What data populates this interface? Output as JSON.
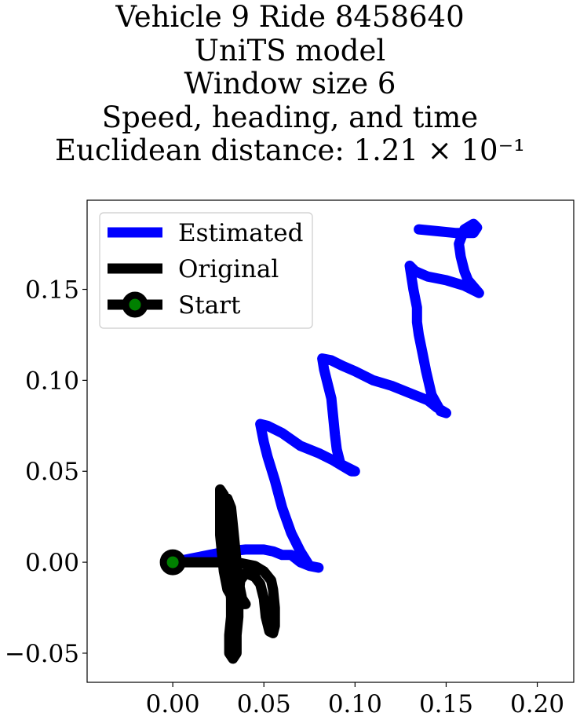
{
  "chart_data": {
    "type": "line",
    "title_lines": [
      "Vehicle 9 Ride 8458640",
      "UniTS model",
      "Window size 6",
      "Speed, heading, and time",
      "Euclidean distance: 1.21 × 10⁻¹"
    ],
    "xlabel": "",
    "ylabel": "",
    "xlim": [
      -0.047,
      0.22
    ],
    "ylim": [
      -0.066,
      0.199
    ],
    "x_ticks": [
      {
        "value": 0.0,
        "label": "0.00"
      },
      {
        "value": 0.05,
        "label": "0.05"
      },
      {
        "value": 0.1,
        "label": "0.10"
      },
      {
        "value": 0.15,
        "label": "0.15"
      },
      {
        "value": 0.2,
        "label": "0.20"
      }
    ],
    "y_ticks": [
      {
        "value": -0.05,
        "label": "−0.05"
      },
      {
        "value": 0.0,
        "label": "0.00"
      },
      {
        "value": 0.05,
        "label": "0.05"
      },
      {
        "value": 0.1,
        "label": "0.10"
      },
      {
        "value": 0.15,
        "label": "0.15"
      }
    ],
    "grid": false,
    "legend_position": "top-left",
    "legend": [
      "Estimated",
      "Original",
      "Start"
    ],
    "series": [
      {
        "name": "Estimated",
        "color": "#0000ff",
        "points": [
          [
            0.0,
            0.0
          ],
          [
            0.01,
            0.002
          ],
          [
            0.02,
            0.004
          ],
          [
            0.03,
            0.006
          ],
          [
            0.04,
            0.007
          ],
          [
            0.05,
            0.007
          ],
          [
            0.055,
            0.006
          ],
          [
            0.06,
            0.004
          ],
          [
            0.065,
            0.004
          ],
          [
            0.07,
            0.0
          ],
          [
            0.075,
            -0.002
          ],
          [
            0.08,
            -0.003
          ],
          [
            0.075,
            -0.002
          ],
          [
            0.07,
            0.006
          ],
          [
            0.065,
            0.016
          ],
          [
            0.06,
            0.03
          ],
          [
            0.056,
            0.045
          ],
          [
            0.052,
            0.058
          ],
          [
            0.05,
            0.066
          ],
          [
            0.048,
            0.076
          ],
          [
            0.052,
            0.075
          ],
          [
            0.06,
            0.071
          ],
          [
            0.07,
            0.064
          ],
          [
            0.08,
            0.06
          ],
          [
            0.088,
            0.056
          ],
          [
            0.093,
            0.053
          ],
          [
            0.098,
            0.05
          ],
          [
            0.1,
            0.05
          ],
          [
            0.092,
            0.054
          ],
          [
            0.09,
            0.062
          ],
          [
            0.089,
            0.07
          ],
          [
            0.088,
            0.08
          ],
          [
            0.087,
            0.09
          ],
          [
            0.085,
            0.098
          ],
          [
            0.083,
            0.106
          ],
          [
            0.082,
            0.112
          ],
          [
            0.087,
            0.111
          ],
          [
            0.093,
            0.108
          ],
          [
            0.1,
            0.105
          ],
          [
            0.11,
            0.1
          ],
          [
            0.12,
            0.097
          ],
          [
            0.13,
            0.093
          ],
          [
            0.14,
            0.089
          ],
          [
            0.145,
            0.085
          ],
          [
            0.15,
            0.082
          ],
          [
            0.147,
            0.083
          ],
          [
            0.142,
            0.092
          ],
          [
            0.139,
            0.105
          ],
          [
            0.137,
            0.115
          ],
          [
            0.135,
            0.125
          ],
          [
            0.134,
            0.132
          ],
          [
            0.134,
            0.14
          ],
          [
            0.132,
            0.15
          ],
          [
            0.13,
            0.163
          ],
          [
            0.133,
            0.16
          ],
          [
            0.14,
            0.157
          ],
          [
            0.15,
            0.155
          ],
          [
            0.16,
            0.152
          ],
          [
            0.168,
            0.148
          ],
          [
            0.162,
            0.155
          ],
          [
            0.16,
            0.16
          ],
          [
            0.158,
            0.168
          ],
          [
            0.157,
            0.175
          ],
          [
            0.16,
            0.183
          ],
          [
            0.165,
            0.186
          ],
          [
            0.167,
            0.184
          ],
          [
            0.165,
            0.181
          ],
          [
            0.155,
            0.181
          ],
          [
            0.145,
            0.182
          ],
          [
            0.135,
            0.183
          ]
        ]
      },
      {
        "name": "Original",
        "color": "#000000",
        "points": [
          [
            0.0,
            0.0
          ],
          [
            0.01,
            0.0
          ],
          [
            0.02,
            0.0
          ],
          [
            0.028,
            0.0
          ],
          [
            0.035,
            0.0
          ],
          [
            0.045,
            -0.002
          ],
          [
            0.05,
            -0.005
          ],
          [
            0.054,
            -0.01
          ],
          [
            0.055,
            -0.015
          ],
          [
            0.056,
            -0.025
          ],
          [
            0.056,
            -0.035
          ],
          [
            0.055,
            -0.039
          ],
          [
            0.053,
            -0.038
          ],
          [
            0.051,
            -0.03
          ],
          [
            0.05,
            -0.02
          ],
          [
            0.048,
            -0.012
          ],
          [
            0.045,
            -0.008
          ],
          [
            0.04,
            -0.006
          ],
          [
            0.037,
            -0.01
          ],
          [
            0.036,
            -0.02
          ],
          [
            0.036,
            -0.03
          ],
          [
            0.035,
            -0.04
          ],
          [
            0.035,
            -0.05
          ],
          [
            0.033,
            -0.053
          ],
          [
            0.031,
            -0.05
          ],
          [
            0.031,
            -0.04
          ],
          [
            0.032,
            -0.03
          ],
          [
            0.032,
            -0.02
          ],
          [
            0.031,
            -0.01
          ],
          [
            0.03,
            0.0
          ],
          [
            0.03,
            0.01
          ],
          [
            0.029,
            0.02
          ],
          [
            0.029,
            0.03
          ],
          [
            0.03,
            0.035
          ],
          [
            0.032,
            0.03
          ],
          [
            0.033,
            0.02
          ],
          [
            0.034,
            0.01
          ],
          [
            0.035,
            0.0
          ],
          [
            0.036,
            -0.01
          ],
          [
            0.038,
            -0.02
          ],
          [
            0.04,
            -0.023
          ],
          [
            0.037,
            -0.023
          ],
          [
            0.033,
            -0.02
          ],
          [
            0.03,
            -0.015
          ],
          [
            0.028,
            -0.005
          ],
          [
            0.027,
            0.005
          ],
          [
            0.026,
            0.015
          ],
          [
            0.026,
            0.025
          ],
          [
            0.026,
            0.035
          ],
          [
            0.026,
            0.04
          ],
          [
            0.028,
            0.037
          ],
          [
            0.03,
            0.03
          ],
          [
            0.031,
            0.02
          ],
          [
            0.032,
            0.01
          ],
          [
            0.034,
            0.002
          ]
        ]
      }
    ],
    "start_point": {
      "name": "Start",
      "x": 0.0,
      "y": 0.0,
      "marker_color": "#008000",
      "edge_color": "#000000"
    }
  }
}
